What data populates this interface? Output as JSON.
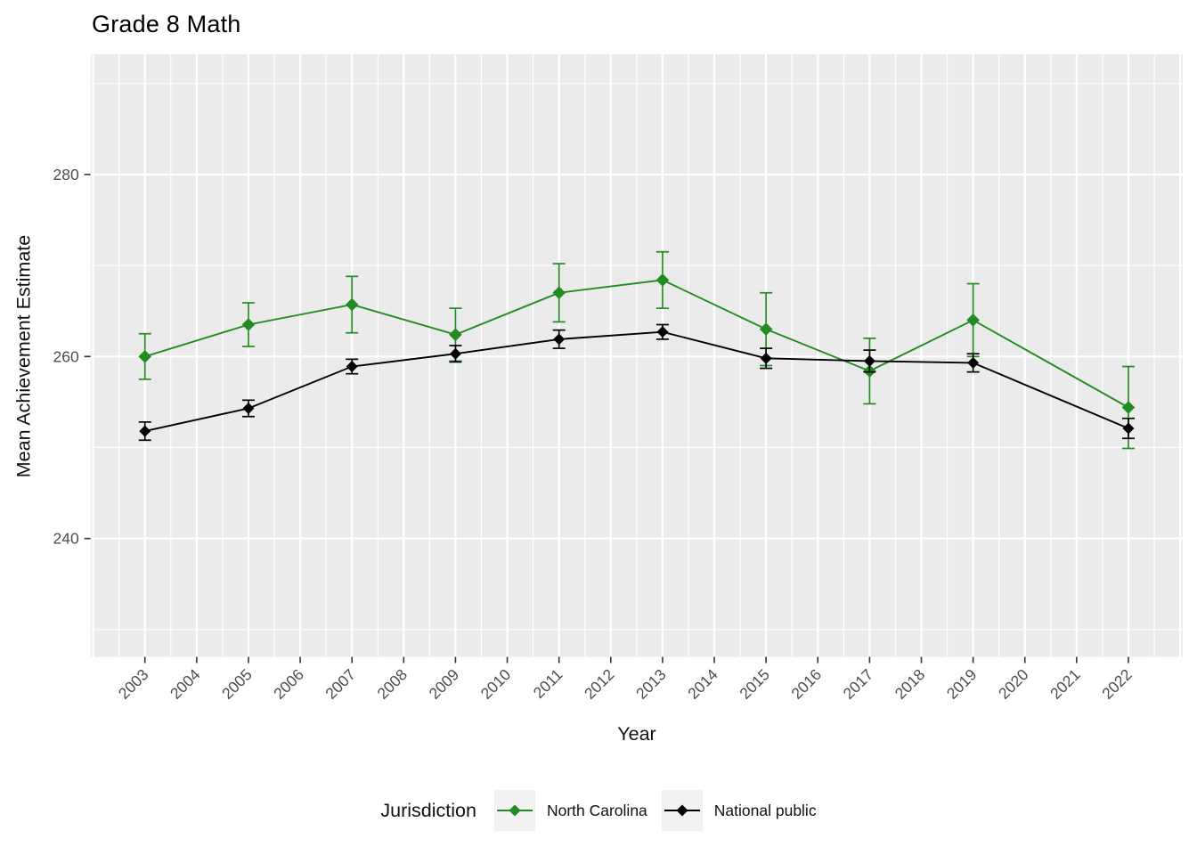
{
  "title": "Grade 8 Math",
  "axes": {
    "x_title": "Year",
    "y_title": "Mean Achievement Estimate",
    "y_tick_values": [
      240,
      260,
      280
    ],
    "y_minor_values": [
      230,
      250,
      270,
      290
    ],
    "x_tick_years": [
      2003,
      2004,
      2005,
      2006,
      2007,
      2008,
      2009,
      2010,
      2011,
      2012,
      2013,
      2014,
      2015,
      2016,
      2017,
      2018,
      2019,
      2020,
      2021,
      2022
    ],
    "x_grid_major_years": [
      2002,
      2003,
      2004,
      2005,
      2006,
      2007,
      2008,
      2009,
      2010,
      2011,
      2012,
      2013,
      2014,
      2015,
      2016,
      2017,
      2018,
      2019,
      2020,
      2021,
      2022,
      2023
    ],
    "x_range": [
      2001.95,
      2023.05
    ],
    "y_range": [
      227.0,
      293.2
    ]
  },
  "legend": {
    "title": "Jurisdiction",
    "items": [
      {
        "label": "North Carolina",
        "color": "#228B22"
      },
      {
        "label": "National public",
        "color": "#000000"
      }
    ]
  },
  "colors": {
    "panel_background": "#EBEBEB",
    "gridline": "#FFFFFF",
    "tick_label": "#4D4D4D",
    "axis_tick": "#333333",
    "legend_key_background": "#F2F2F2",
    "north_carolina": "#228B22",
    "national_public": "#000000"
  },
  "chart_data": {
    "type": "line",
    "title": "Grade 8 Math",
    "xlabel": "Year",
    "ylabel": "Mean Achievement Estimate",
    "x": [
      2003,
      2005,
      2007,
      2009,
      2011,
      2013,
      2015,
      2017,
      2019,
      2022
    ],
    "series": [
      {
        "name": "North Carolina",
        "color": "#228B22",
        "marker": "diamond",
        "values": [
          260.0,
          263.5,
          265.7,
          262.4,
          267.0,
          268.4,
          263.0,
          258.4,
          264.0,
          254.4
        ],
        "error": [
          2.5,
          2.4,
          3.1,
          2.9,
          3.2,
          3.1,
          4.0,
          3.6,
          4.0,
          4.5
        ]
      },
      {
        "name": "National public",
        "color": "#000000",
        "marker": "diamond",
        "values": [
          251.8,
          254.3,
          258.9,
          260.3,
          261.9,
          262.7,
          259.8,
          259.5,
          259.3,
          252.1
        ],
        "error": [
          1.0,
          0.9,
          0.8,
          0.9,
          1.0,
          0.8,
          1.1,
          1.2,
          1.0,
          1.1
        ]
      }
    ],
    "x_ticks": [
      2003,
      2004,
      2005,
      2006,
      2007,
      2008,
      2009,
      2010,
      2011,
      2012,
      2013,
      2014,
      2015,
      2016,
      2017,
      2018,
      2019,
      2020,
      2021,
      2022
    ],
    "y_ticks": [
      240,
      260,
      280
    ],
    "ylim": [
      227.0,
      293.2
    ],
    "xlim": [
      2001.95,
      2023.05
    ],
    "grid": true,
    "error_bars": true,
    "legend_position": "bottom"
  }
}
